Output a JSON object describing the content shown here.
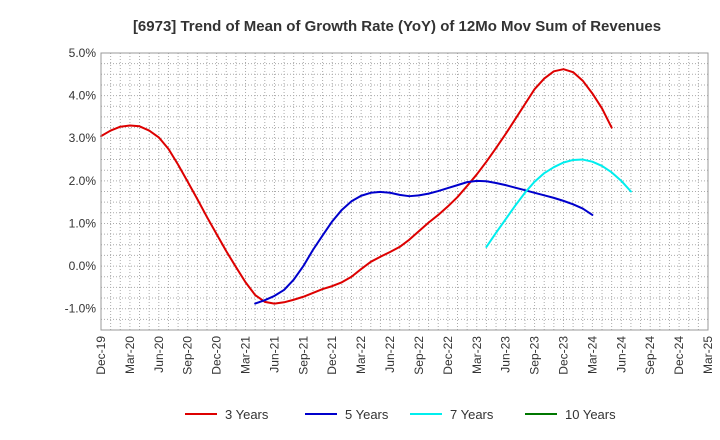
{
  "chart_data": {
    "type": "line",
    "title": "[6973]  Trend of Mean of Growth Rate (YoY) of 12Mo Mov Sum of Revenues",
    "xlabel": "",
    "ylabel": "",
    "ylim": [
      -1.5,
      5.0
    ],
    "y_ticks": [
      -1.0,
      0.0,
      1.0,
      2.0,
      3.0,
      4.0,
      5.0
    ],
    "y_tick_labels": [
      "-1.0%",
      "0.0%",
      "1.0%",
      "2.0%",
      "3.0%",
      "4.0%",
      "5.0%"
    ],
    "x_tick_labels": [
      "Dec-19",
      "Mar-20",
      "Jun-20",
      "Sep-20",
      "Dec-20",
      "Mar-21",
      "Jun-21",
      "Sep-21",
      "Dec-21",
      "Mar-22",
      "Jun-22",
      "Sep-22",
      "Dec-22",
      "Mar-23",
      "Jun-23",
      "Sep-23",
      "Dec-23",
      "Mar-24",
      "Jun-24",
      "Sep-24",
      "Dec-24",
      "Mar-25"
    ],
    "grid": true,
    "legend_position": "bottom",
    "series": [
      {
        "name": "3 Years",
        "color": "#dd0000",
        "start_index": 0,
        "values": [
          3.05,
          3.18,
          3.27,
          3.3,
          3.28,
          3.18,
          3.02,
          2.75,
          2.38,
          1.98,
          1.57,
          1.15,
          0.75,
          0.35,
          -0.02,
          -0.38,
          -0.68,
          -0.84,
          -0.88,
          -0.85,
          -0.79,
          -0.72,
          -0.63,
          -0.54,
          -0.47,
          -0.38,
          -0.25,
          -0.07,
          0.1,
          0.22,
          0.33,
          0.45,
          0.62,
          0.82,
          1.02,
          1.2,
          1.4,
          1.62,
          1.88,
          2.15,
          2.45,
          2.77,
          3.1,
          3.45,
          3.8,
          4.15,
          4.4,
          4.57,
          4.62,
          4.55,
          4.35,
          4.05,
          3.7,
          3.25
        ]
      },
      {
        "name": "5 Years",
        "color": "#0000cc",
        "start_index": 16,
        "values": [
          -0.88,
          -0.8,
          -0.7,
          -0.56,
          -0.32,
          0.0,
          0.38,
          0.72,
          1.05,
          1.32,
          1.52,
          1.65,
          1.72,
          1.74,
          1.72,
          1.67,
          1.64,
          1.66,
          1.7,
          1.76,
          1.83,
          1.9,
          1.97,
          2.0,
          1.99,
          1.95,
          1.9,
          1.84,
          1.78,
          1.72,
          1.66,
          1.6,
          1.53,
          1.45,
          1.35,
          1.2
        ]
      },
      {
        "name": "7 Years",
        "color": "#00eeee",
        "start_index": 40,
        "values": [
          0.45,
          0.78,
          1.1,
          1.42,
          1.72,
          1.98,
          2.18,
          2.32,
          2.43,
          2.49,
          2.5,
          2.45,
          2.35,
          2.2,
          2.0,
          1.75
        ]
      },
      {
        "name": "10 Years",
        "color": "#007700",
        "start_index": 0,
        "values": []
      }
    ]
  }
}
